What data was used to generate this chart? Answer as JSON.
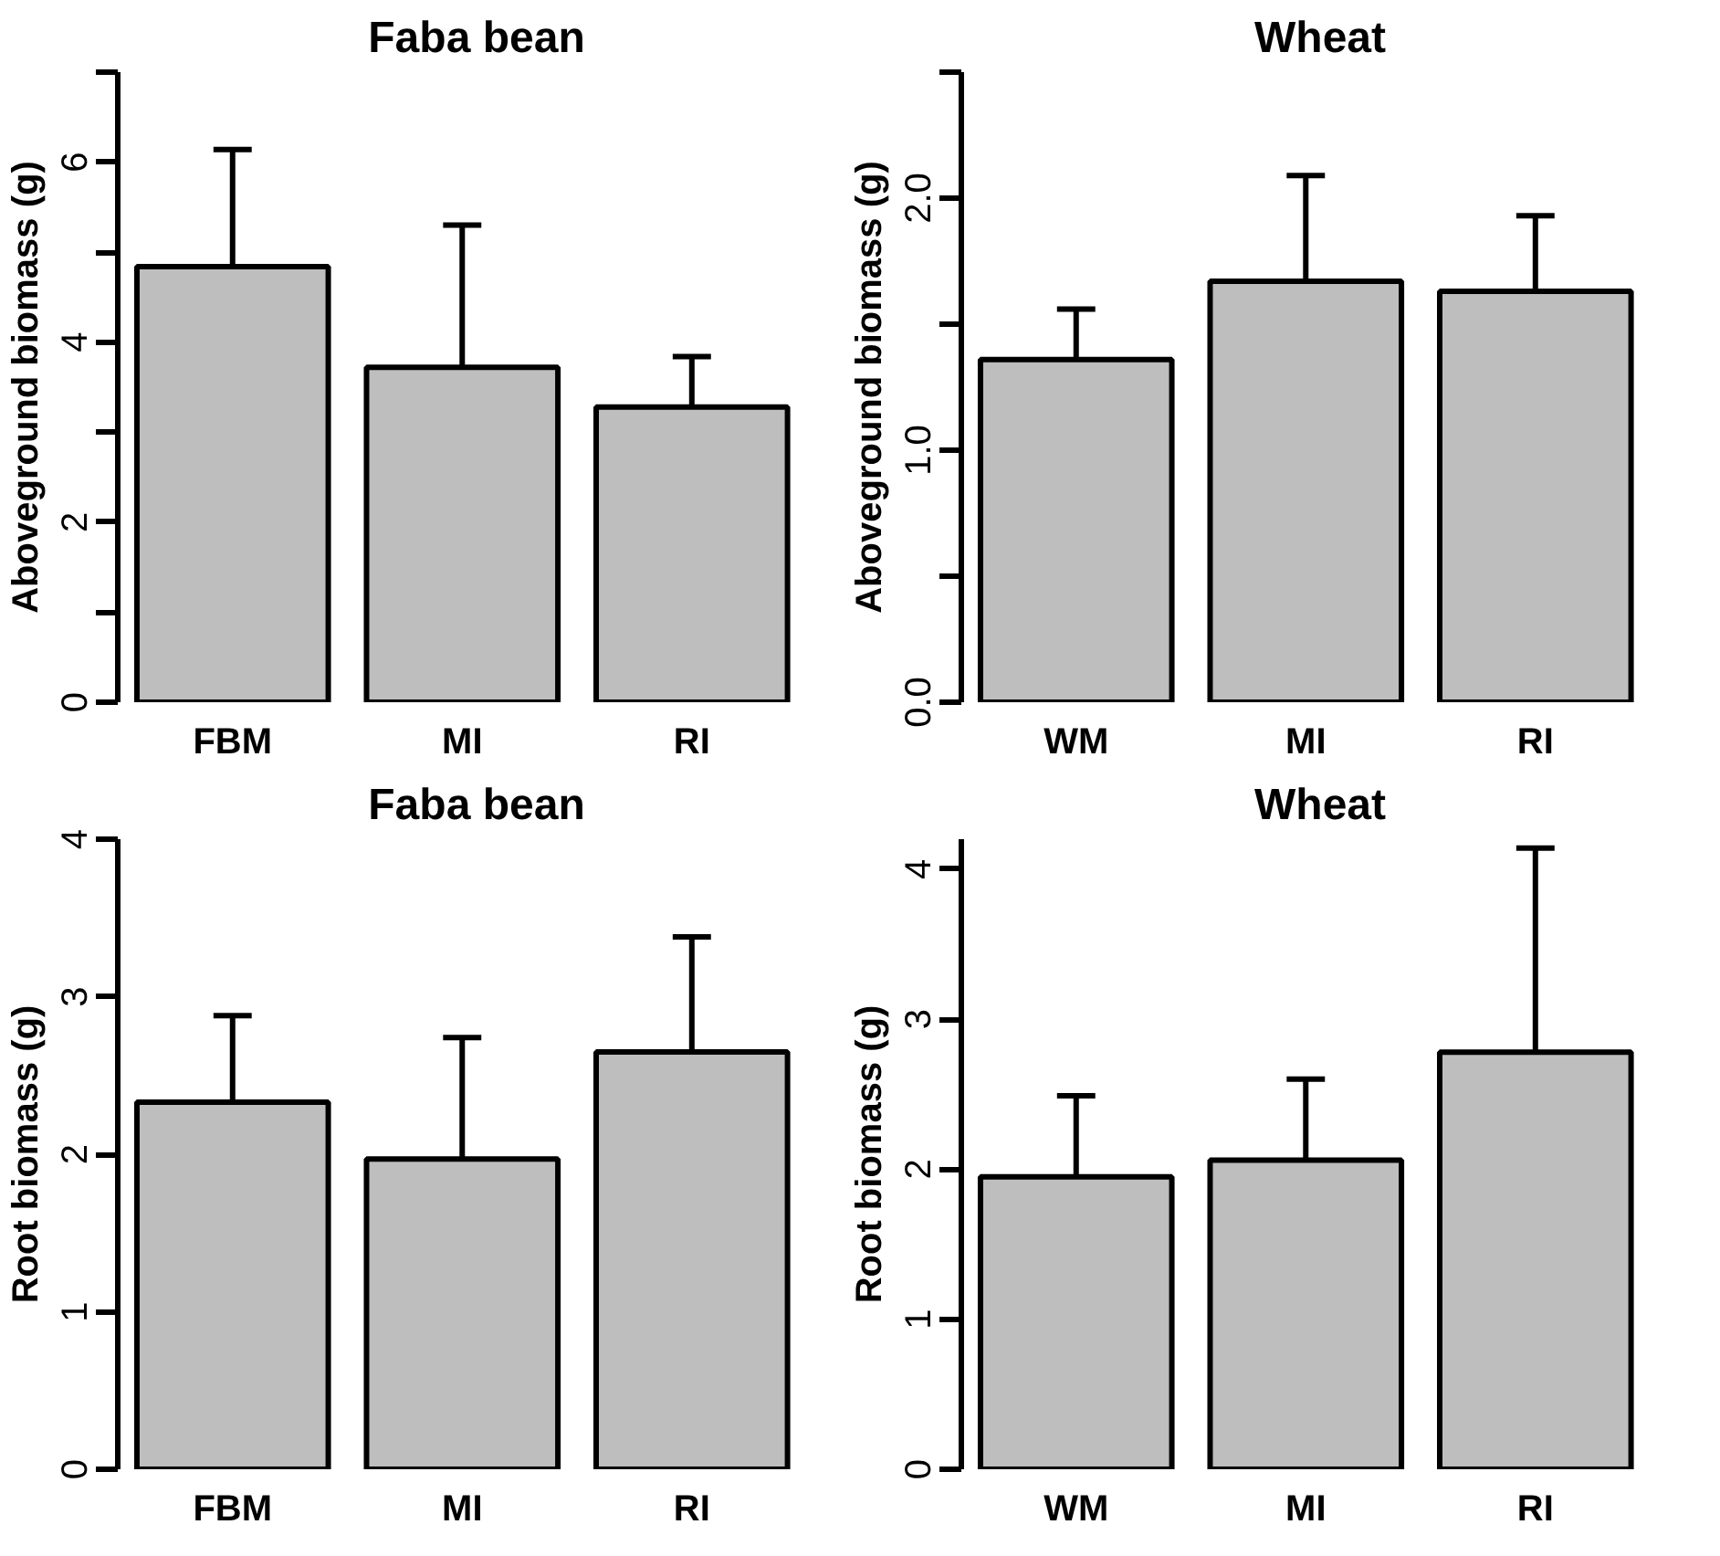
{
  "chart_data": [
    {
      "type": "bar",
      "title": "Faba bean",
      "ylabel": "Aboveground biomass (g)",
      "categories": [
        "FBM",
        "MI",
        "RI"
      ],
      "values": [
        4.84,
        3.72,
        3.28
      ],
      "errors": [
        1.3,
        1.58,
        0.56
      ],
      "color": "#bebebe",
      "ylim": [
        0,
        7
      ],
      "yticks": [
        0,
        {
          "value": 1,
          "label": null
        },
        2,
        {
          "value": 3,
          "label": null
        },
        4,
        {
          "value": 5,
          "label": null
        },
        6,
        {
          "value": 7,
          "label": null
        }
      ],
      "grid": false
    },
    {
      "type": "bar",
      "title": "Wheat",
      "ylabel": "Aboveground biomass (g)",
      "categories": [
        "WM",
        "MI",
        "RI"
      ],
      "values": [
        1.36,
        1.67,
        1.63
      ],
      "errors": [
        0.2,
        0.42,
        0.3
      ],
      "color": "#bebebe",
      "ylim": [
        0,
        2.5
      ],
      "yticks": [
        {
          "value": 0,
          "label": "0.0"
        },
        {
          "value": 0.5,
          "label": null
        },
        {
          "value": 1,
          "label": "1.0"
        },
        {
          "value": 1.5,
          "label": null
        },
        {
          "value": 2,
          "label": "2.0"
        },
        {
          "value": 2.5,
          "label": null
        }
      ],
      "grid": false
    },
    {
      "type": "bar",
      "title": "Faba bean",
      "ylabel": "Root biomass (g)",
      "categories": [
        "FBM",
        "MI",
        "RI"
      ],
      "values": [
        2.33,
        1.97,
        2.65
      ],
      "errors": [
        0.55,
        0.77,
        0.73
      ],
      "color": "#bebebe",
      "ylim": [
        0,
        4
      ],
      "yticks": [
        0,
        1,
        2,
        3,
        4
      ],
      "grid": false
    },
    {
      "type": "bar",
      "title": "Wheat",
      "ylabel": "Root biomass (g)",
      "categories": [
        "WM",
        "MI",
        "RI"
      ],
      "values": [
        1.95,
        2.06,
        2.78
      ],
      "errors": [
        0.54,
        0.54,
        1.36
      ],
      "color": "#bebebe",
      "ylim": [
        0,
        4.2
      ],
      "yticks": [
        0,
        1,
        2,
        3,
        4
      ],
      "grid": false
    }
  ]
}
